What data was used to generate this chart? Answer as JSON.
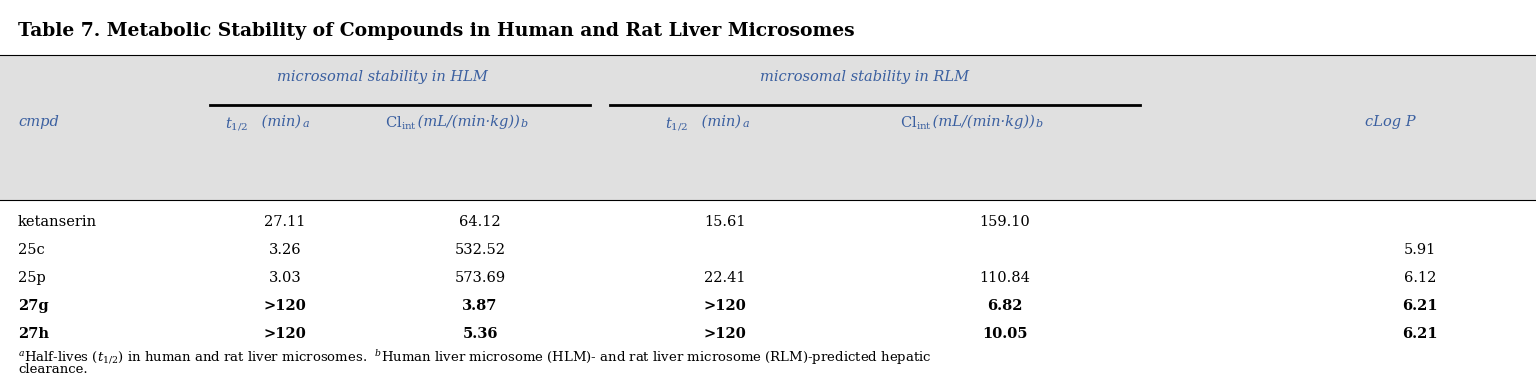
{
  "title": "Table 7. Metabolic Stability of Compounds in Human and Rat Liver Microsomes",
  "rows": [
    [
      "ketanserin",
      "27.11",
      "64.12",
      "15.61",
      "159.10",
      ""
    ],
    [
      "25c",
      "3.26",
      "532.52",
      "",
      "",
      "5.91"
    ],
    [
      "25p",
      "3.03",
      "573.69",
      "22.41",
      "110.84",
      "6.12"
    ],
    [
      "27g",
      ">120",
      "3.87",
      ">120",
      "6.82",
      "6.21"
    ],
    [
      "27h",
      ">120",
      "5.36",
      ">120",
      "10.05",
      "6.21"
    ]
  ],
  "bold_rows": [
    false,
    false,
    false,
    true,
    true
  ],
  "header_bg": "#e0e0e0",
  "title_color": "#000000",
  "text_color": "#000000",
  "italic_color": "#3a5fa0",
  "bg_color": "#ffffff",
  "fig_width": 15.36,
  "fig_height": 3.82,
  "dpi": 100
}
